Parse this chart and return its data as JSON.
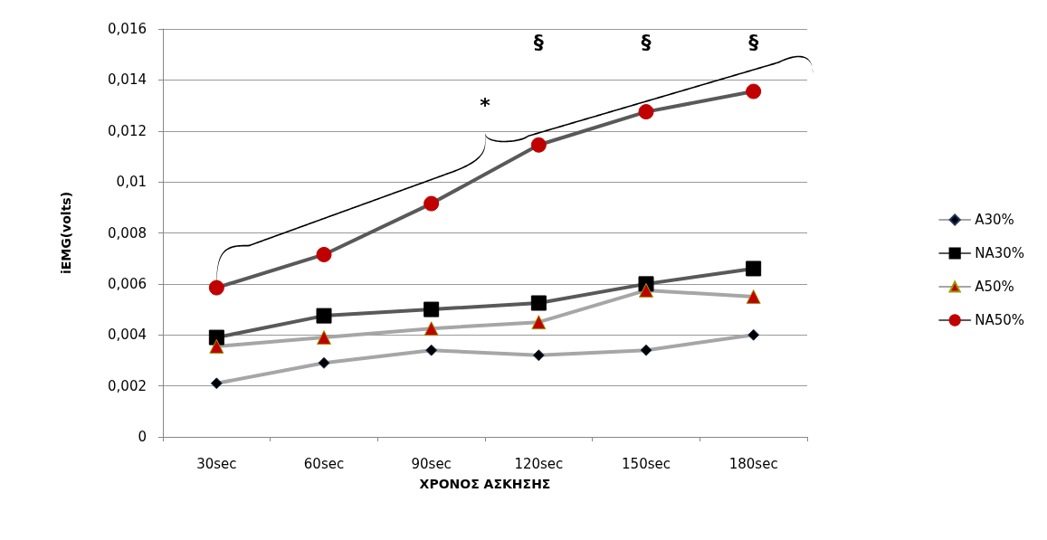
{
  "chart_data": {
    "type": "line",
    "xlabel": "ΧΡΟΝΟΣ ΑΣΚΗΣΗΣ",
    "ylabel": "iEMG(volts)",
    "categories": [
      "30sec",
      "60sec",
      "90sec",
      "120sec",
      "150sec",
      "180sec"
    ],
    "series": [
      {
        "name": "A30%",
        "color": "#a6a6a6",
        "marker": "diamond",
        "values": [
          0.0021,
          0.0029,
          0.0034,
          0.0032,
          0.0034,
          0.004
        ]
      },
      {
        "name": "NA30%",
        "color": "#595959",
        "marker": "square",
        "values": [
          0.0039,
          0.00475,
          0.005,
          0.00525,
          0.006,
          0.0066
        ]
      },
      {
        "name": "A50%",
        "color": "#a6a6a6",
        "marker": "triangle",
        "values": [
          0.00355,
          0.0039,
          0.00425,
          0.0045,
          0.00575,
          0.0055
        ]
      },
      {
        "name": "NA50%",
        "color": "#595959",
        "marker": "circle",
        "values": [
          0.00585,
          0.00715,
          0.00915,
          0.01145,
          0.01275,
          0.01355
        ]
      }
    ],
    "ylim": [
      0,
      0.016
    ],
    "yticks": [
      0,
      {
        "value": 0.002,
        "label": "0,002"
      },
      {
        "value": 0.004,
        "label": "0,004"
      },
      {
        "value": 0.006,
        "label": "0,006"
      },
      {
        "value": 0.008,
        "label": "0,008"
      },
      {
        "value": 0.01,
        "label": "0,01"
      },
      {
        "value": 0.012,
        "label": "0,012"
      },
      {
        "value": 0.014,
        "label": "0,014"
      },
      {
        "value": 0.016,
        "label": "0,016"
      }
    ],
    "grid": "y",
    "legend": "right",
    "line_style": "solid",
    "annotations": [
      "*",
      "§",
      "§",
      "§"
    ]
  }
}
